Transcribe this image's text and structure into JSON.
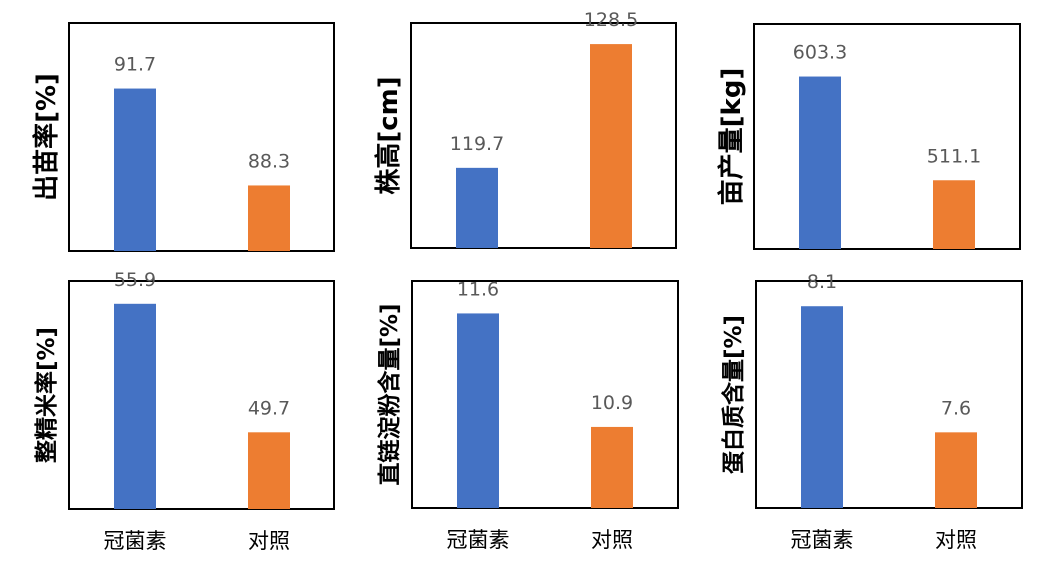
{
  "colors": {
    "series_a": "#4472C4",
    "series_b": "#ED7D31",
    "label": "#595959",
    "frame": "#000000"
  },
  "chart_data": [
    {
      "type": "bar",
      "ylabel": "出苗率[%]",
      "categories": [
        "冠菌素",
        "对照"
      ],
      "values": [
        91.7,
        88.3
      ],
      "ylim": [
        86,
        94
      ],
      "grid": false,
      "show_categories": false
    },
    {
      "type": "bar",
      "ylabel": "株高[cm]",
      "categories": [
        "冠菌素",
        "对照"
      ],
      "values": [
        119.7,
        128.5
      ],
      "ylim": [
        114,
        130
      ],
      "grid": false,
      "show_categories": false
    },
    {
      "type": "bar",
      "ylabel": "亩产量[kg]",
      "categories": [
        "冠菌素",
        "对照"
      ],
      "values": [
        603.3,
        511.1
      ],
      "ylim": [
        450,
        650
      ],
      "grid": false,
      "show_categories": false
    },
    {
      "type": "bar",
      "ylabel": "整精米率[%]",
      "categories": [
        "冠菌素",
        "对照"
      ],
      "values": [
        55.9,
        49.7
      ],
      "ylim": [
        46,
        57
      ],
      "grid": false,
      "show_categories": true
    },
    {
      "type": "bar",
      "ylabel": "直链淀粉含量[%]",
      "categories": [
        "冠菌素",
        "对照"
      ],
      "values": [
        11.6,
        10.9
      ],
      "ylim": [
        10.4,
        11.8
      ],
      "grid": false,
      "show_categories": true
    },
    {
      "type": "bar",
      "ylabel": "蛋白质含量[%]",
      "categories": [
        "冠菌素",
        "对照"
      ],
      "values": [
        8.1,
        7.6
      ],
      "ylim": [
        7.3,
        8.2
      ],
      "grid": false,
      "show_categories": true
    }
  ]
}
